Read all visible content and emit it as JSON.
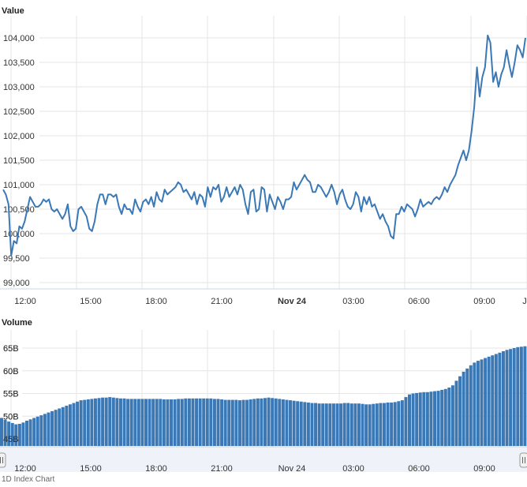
{
  "footer_text": "1D    Index    Chart",
  "chart_data": [
    {
      "type": "line",
      "title": "Value",
      "ylim": [
        99000,
        104000
      ],
      "yticks": [
        "99,000",
        "99,500",
        "100,000",
        "100,500",
        "101,000",
        "101,500",
        "102,000",
        "102,500",
        "103,000",
        "103,500",
        "104,000"
      ],
      "xtick_labels": [
        "12:00",
        "15:00",
        "18:00",
        "21:00",
        "Nov 24",
        "03:00",
        "06:00",
        "09:00",
        "J"
      ],
      "grid": true,
      "color": "#3a78b6",
      "series": [
        {
          "values": [
            100900,
            100800,
            100600,
            99550,
            99850,
            99800,
            100150,
            100100,
            100250,
            100500,
            100750,
            100650,
            100550,
            100550,
            100600,
            100700,
            100650,
            100700,
            100500,
            100450,
            100500,
            100400,
            100300,
            100400,
            100600,
            100150,
            100050,
            100100,
            100500,
            100550,
            100450,
            100350,
            100100,
            100050,
            100250,
            100600,
            100800,
            100800,
            100600,
            100800,
            100800,
            100750,
            100800,
            100550,
            100400,
            100600,
            100500,
            100500,
            100400,
            100700,
            100550,
            100450,
            100650,
            100700,
            100600,
            100750,
            100550,
            100850,
            100700,
            100650,
            100900,
            100800,
            100850,
            100900,
            100950,
            101050,
            101000,
            100850,
            100900,
            100800,
            100700,
            100850,
            100600,
            100800,
            100750,
            100550,
            100950,
            100750,
            100950,
            100900,
            101000,
            100650,
            100750,
            100950,
            100750,
            100850,
            100950,
            100800,
            101000,
            100900,
            100600,
            100400,
            100850,
            100900,
            100450,
            100500,
            100950,
            100900,
            100450,
            100800,
            100650,
            100500,
            100750,
            100650,
            100500,
            100700,
            100700,
            100750,
            101050,
            100900,
            101000,
            101100,
            101200,
            101100,
            101050,
            100850,
            100850,
            101000,
            100950,
            100850,
            100750,
            100850,
            101000,
            100850,
            100600,
            100800,
            100900,
            100700,
            100550,
            100500,
            100600,
            100850,
            100750,
            100450,
            100750,
            100600,
            100750,
            100550,
            100600,
            100450,
            100300,
            100400,
            100250,
            100150,
            99950,
            99900,
            100400,
            100400,
            100550,
            100450,
            100600,
            100550,
            100500,
            100350,
            100500,
            100700,
            100550,
            100600,
            100650,
            100600,
            100700,
            100750,
            100700,
            100800,
            100950,
            100850,
            101000,
            101100,
            101200,
            101400,
            101550,
            101700,
            101500,
            101700,
            102100,
            102600,
            103400,
            102800,
            103200,
            103400,
            104050,
            103900,
            103100,
            103300,
            103000,
            103250,
            103400,
            103750,
            103450,
            103200,
            103500,
            103850,
            103750,
            103600,
            104000
          ]
        }
      ]
    },
    {
      "type": "bar",
      "title": "Volume",
      "ylim": [
        43,
        68
      ],
      "yticks": [
        "45B",
        "50B",
        "55B",
        "60B",
        "65B"
      ],
      "xtick_labels": [
        "12:00",
        "15:00",
        "18:00",
        "21:00",
        "Nov 24",
        "03:00",
        "06:00",
        "09:00"
      ],
      "grid": true,
      "color": "#3a78b6",
      "series": [
        {
          "values": [
            49.6,
            49.2,
            48.8,
            48.5,
            48.2,
            48.3,
            48.6,
            49.0,
            49.3,
            49.6,
            49.9,
            50.2,
            50.5,
            50.8,
            51.1,
            51.4,
            51.7,
            52.0,
            52.3,
            52.6,
            52.9,
            53.2,
            53.5,
            53.6,
            53.7,
            53.8,
            53.9,
            54.0,
            54.1,
            54.1,
            54.2,
            54.1,
            54.0,
            53.9,
            53.9,
            53.8,
            53.8,
            53.8,
            53.8,
            53.8,
            53.8,
            53.8,
            53.8,
            53.8,
            53.8,
            53.7,
            53.7,
            53.7,
            53.7,
            53.8,
            53.8,
            53.9,
            53.9,
            53.9,
            53.9,
            53.9,
            53.9,
            53.9,
            53.9,
            53.8,
            53.8,
            53.7,
            53.6,
            53.6,
            53.6,
            53.6,
            53.5,
            53.6,
            53.6,
            53.7,
            53.8,
            53.9,
            53.9,
            54.0,
            54.1,
            54.0,
            53.9,
            53.8,
            53.7,
            53.6,
            53.5,
            53.4,
            53.3,
            53.2,
            53.1,
            53.0,
            52.9,
            52.9,
            52.8,
            52.8,
            52.8,
            52.8,
            52.8,
            52.8,
            52.8,
            52.9,
            52.9,
            52.8,
            52.8,
            52.8,
            52.7,
            52.6,
            52.6,
            52.7,
            52.8,
            52.9,
            52.9,
            53.0,
            53.0,
            53.1,
            53.3,
            53.5,
            54.2,
            54.8,
            55.0,
            55.1,
            55.2,
            55.3,
            55.3,
            55.4,
            55.5,
            55.6,
            55.8,
            56.0,
            56.3,
            56.8,
            57.8,
            58.8,
            59.8,
            60.5,
            61.2,
            61.8,
            62.2,
            62.5,
            62.8,
            63.1,
            63.4,
            63.7,
            64.0,
            64.3,
            64.6,
            64.8,
            65.0,
            65.2,
            65.3,
            65.4
          ]
        }
      ]
    }
  ]
}
